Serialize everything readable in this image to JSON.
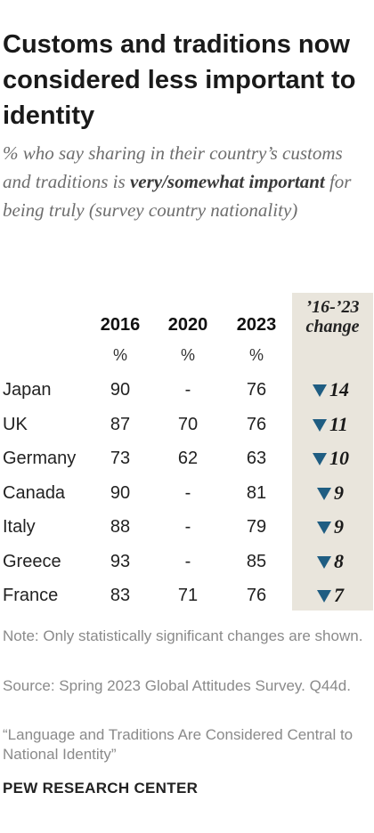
{
  "title": "Customs and traditions now considered less important to identity",
  "subtitle": {
    "before": "% who say sharing in their country’s customs and traditions is ",
    "emphasis": "very/somewhat important",
    "after": " for being truly (survey country nationality)"
  },
  "chart_data": {
    "type": "table",
    "columns": [
      "2016",
      "2020",
      "2023"
    ],
    "unit": "%",
    "change_label": "’16-’23 change",
    "change_direction": "down",
    "rows": [
      {
        "country": "Japan",
        "v2016": "90",
        "v2020": "-",
        "v2023": "76",
        "change": "14"
      },
      {
        "country": "UK",
        "v2016": "87",
        "v2020": "70",
        "v2023": "76",
        "change": "11"
      },
      {
        "country": "Germany",
        "v2016": "73",
        "v2020": "62",
        "v2023": "63",
        "change": "10"
      },
      {
        "country": "Canada",
        "v2016": "90",
        "v2020": "-",
        "v2023": "81",
        "change": "9"
      },
      {
        "country": "Italy",
        "v2016": "88",
        "v2020": "-",
        "v2023": "79",
        "change": "9"
      },
      {
        "country": "Greece",
        "v2016": "93",
        "v2020": "-",
        "v2023": "85",
        "change": "8"
      },
      {
        "country": "France",
        "v2016": "83",
        "v2020": "71",
        "v2023": "76",
        "change": "7"
      }
    ]
  },
  "notes": {
    "note": "Note: Only statistically significant changes are shown.",
    "source": "Source: Spring 2023 Global Attitudes Survey. Q44d.",
    "report": "“Language and Traditions Are Considered Central to National Identity”"
  },
  "brand": "PEW RESEARCH CENTER",
  "colors": {
    "arrow": "#1f5d82",
    "change_bg": "#e9e5dc"
  }
}
